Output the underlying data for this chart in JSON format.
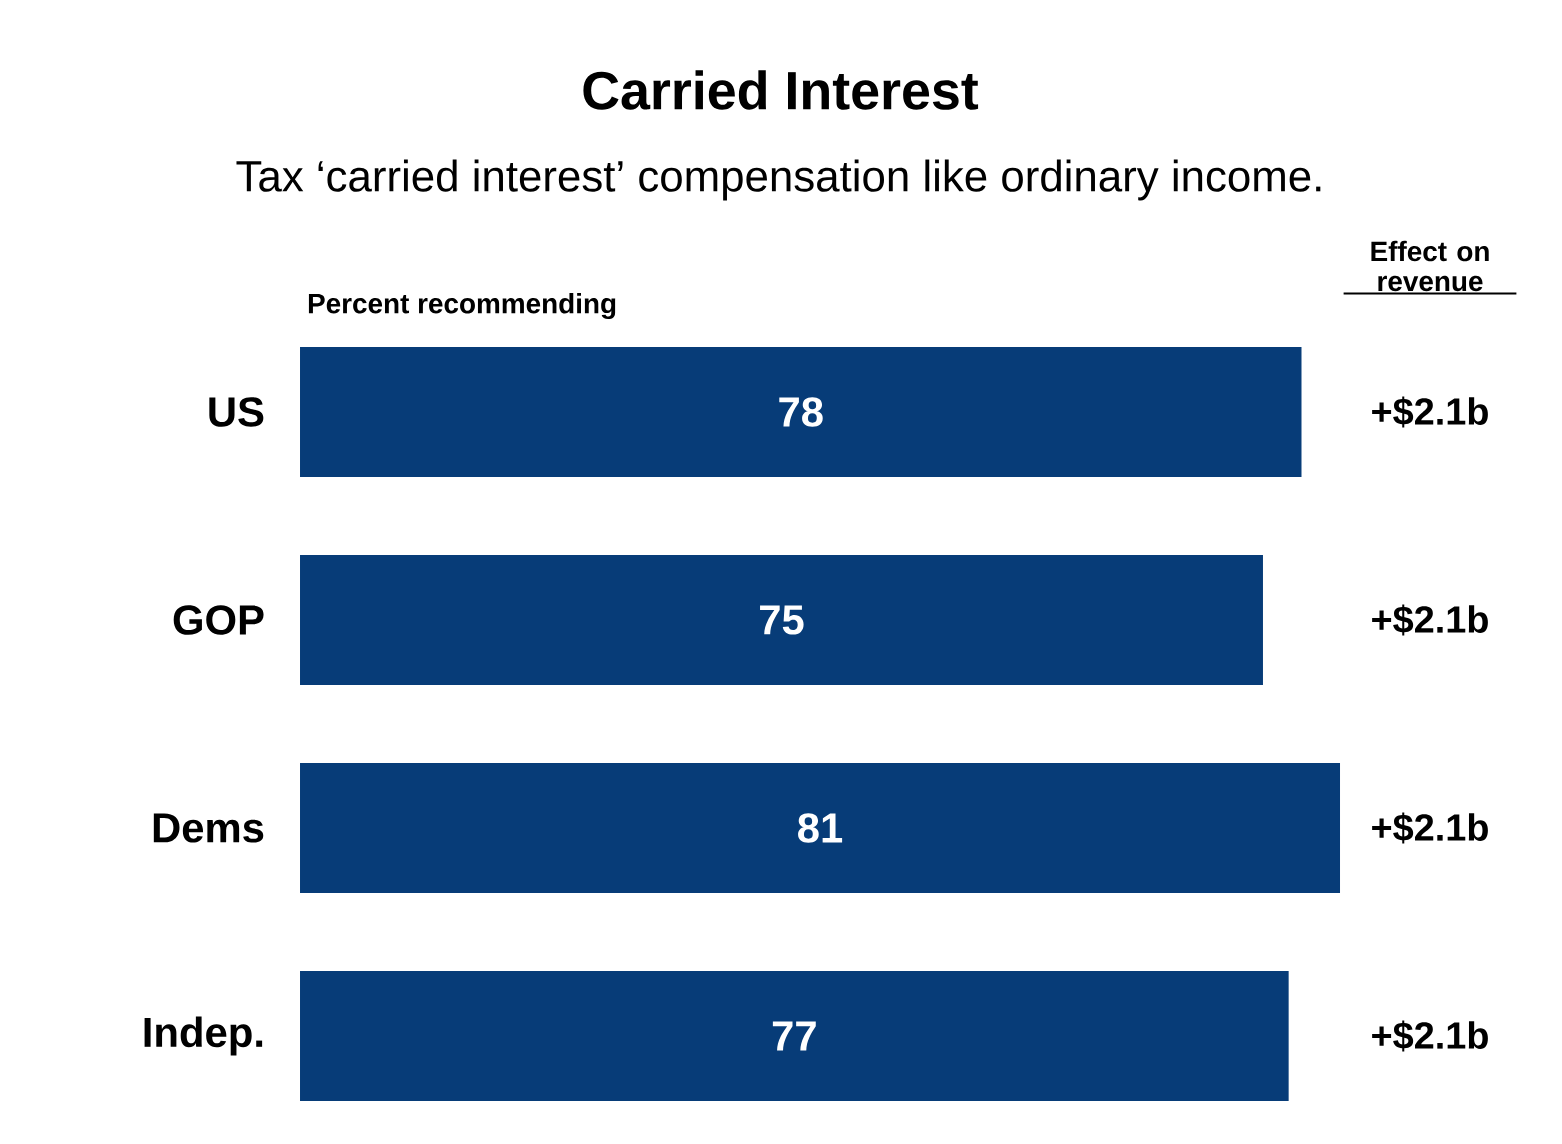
{
  "chart_data": {
    "type": "bar",
    "orientation": "horizontal",
    "title": "Carried Interest",
    "subtitle": "Tax ‘carried interest’ compensation like ordinary income.",
    "xlabel": "Percent recommending",
    "categories": [
      "US",
      "GOP",
      "Dems",
      "Indep."
    ],
    "values": [
      78,
      75,
      81,
      77
    ],
    "color": "#073c78",
    "data_labels": true,
    "annotations": [
      "Effect on revenue",
      "+$2.1b",
      "+$2.1b",
      "+$2.1b",
      "+$2.1b"
    ]
  }
}
